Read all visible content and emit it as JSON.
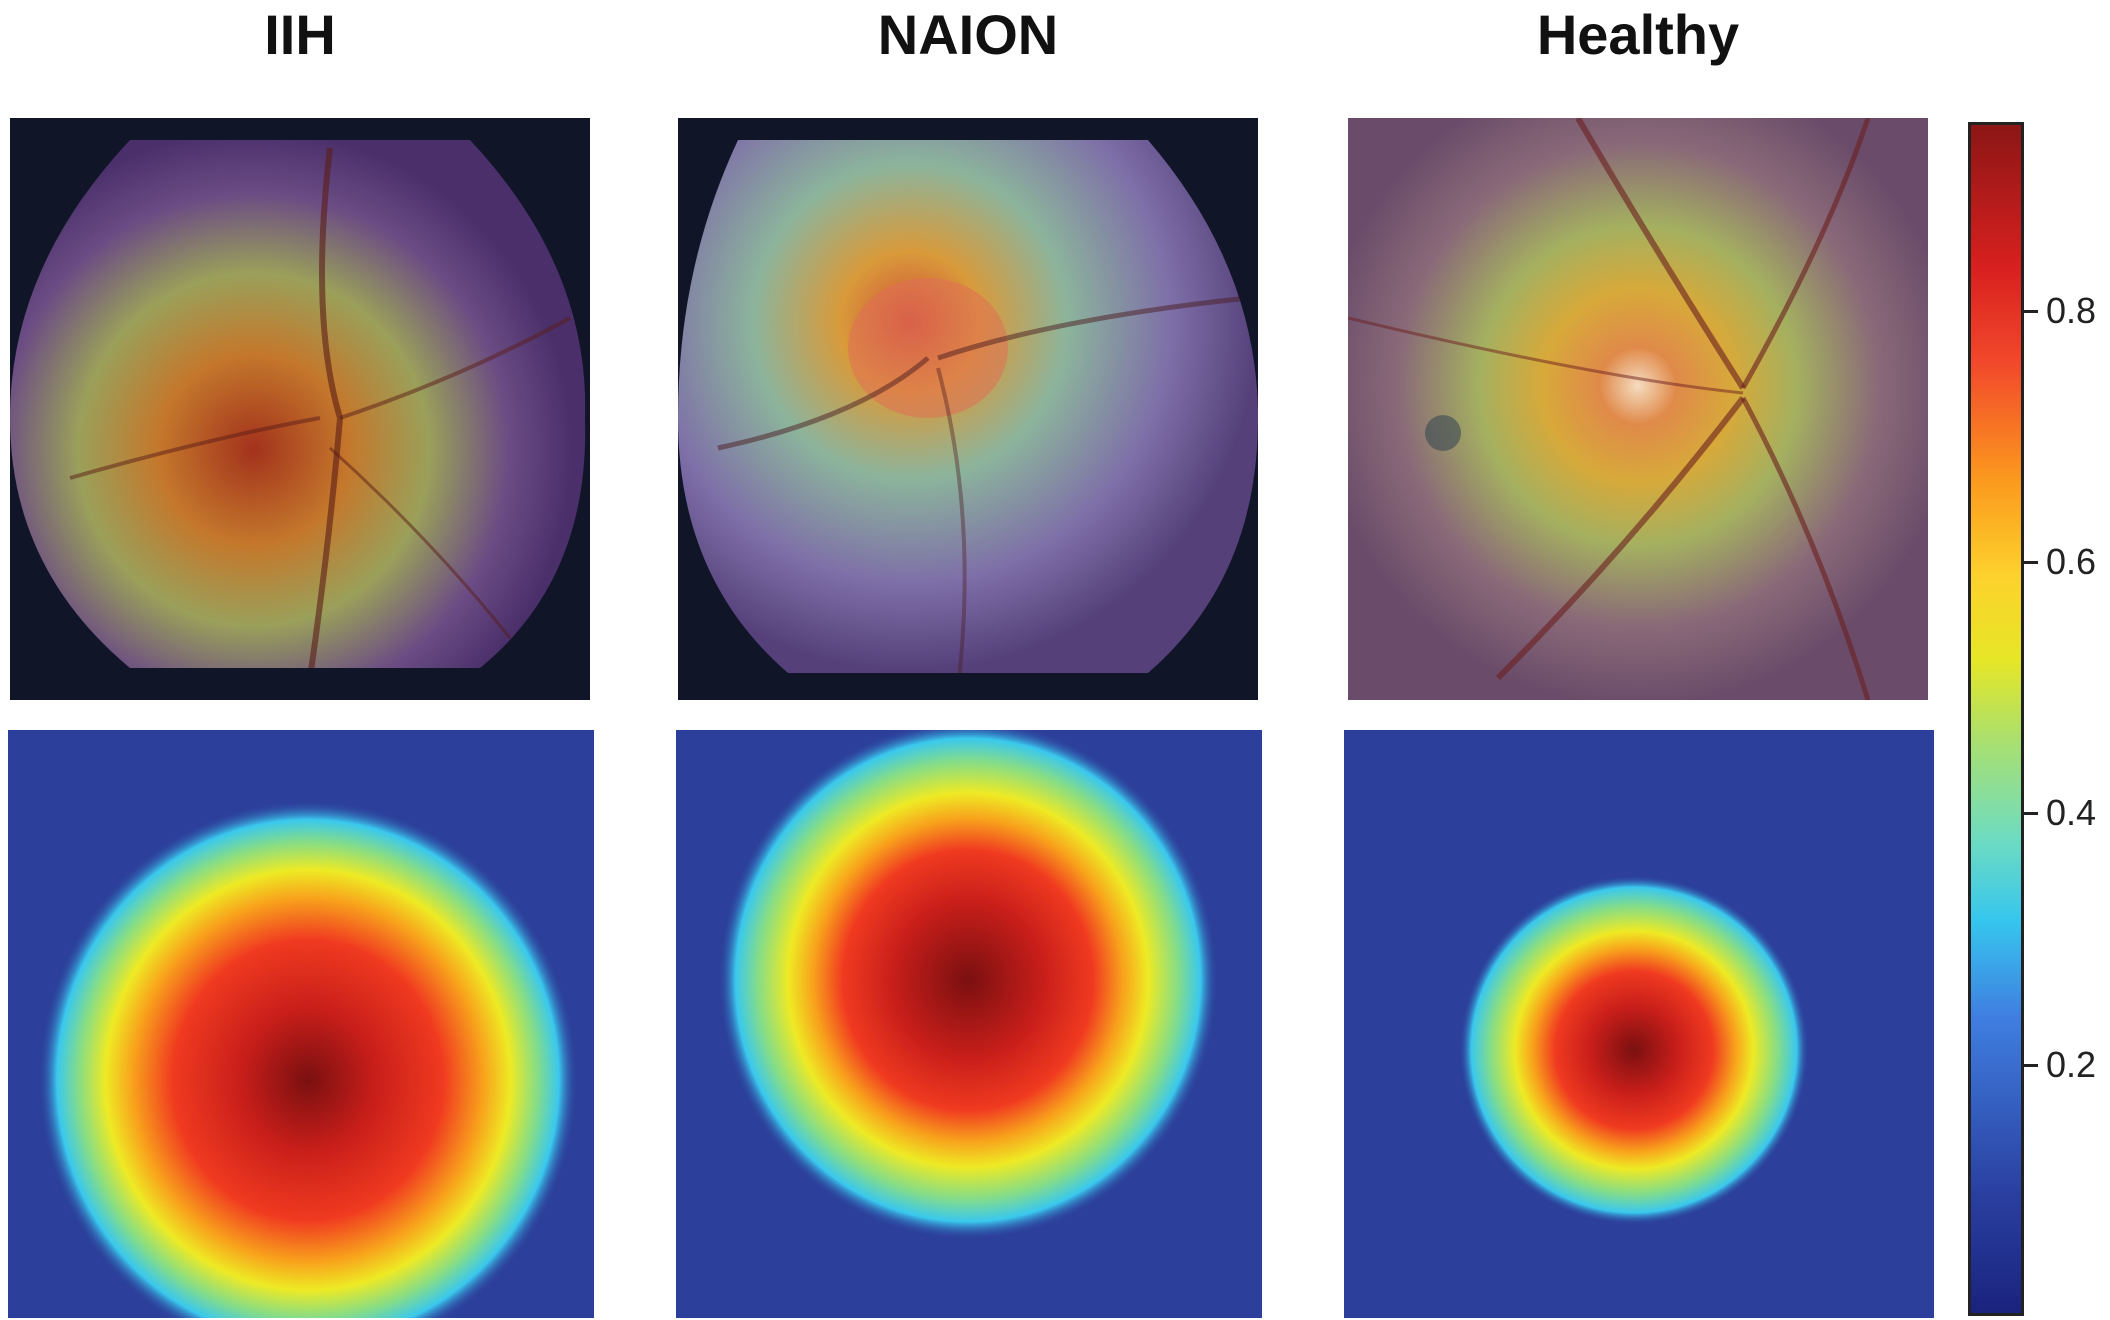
{
  "columns": [
    {
      "title": "IIH"
    },
    {
      "title": "NAION"
    },
    {
      "title": "Healthy"
    }
  ],
  "colorbar": {
    "ticks": [
      "0.2",
      "0.4",
      "0.6",
      "0.8"
    ],
    "values": [
      0.2,
      0.4,
      0.6,
      0.8
    ],
    "range": [
      0.0,
      0.95
    ],
    "colormap": "jet"
  },
  "colors": {
    "low": "#2c3f9a",
    "mid": "#e6e626",
    "high": "#8c1616"
  }
}
